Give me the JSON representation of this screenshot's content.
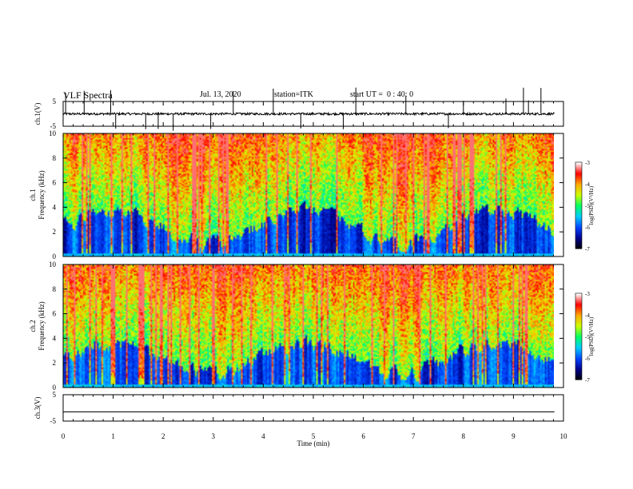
{
  "header": {
    "title": "VLF Spectra",
    "date": "Jul. 13, 2020",
    "station": "station=ITK",
    "start_ut": "start UT =  0 : 40: 0"
  },
  "chart_data": [
    {
      "type": "line",
      "panel": "ch1-waveform",
      "ylabel": "ch.1(V)",
      "ylim": [
        -5,
        5
      ],
      "yticks": [
        "5",
        "-5"
      ],
      "baseline": 0,
      "spike_times_min": [
        0.05,
        0.42,
        0.95,
        1.05,
        1.65,
        1.9,
        2.2,
        2.95,
        3.4,
        4.2,
        4.75,
        5.6,
        5.85,
        6.85,
        7.7,
        8.0,
        8.85,
        9.2,
        9.3,
        9.55
      ],
      "color": "#000000"
    },
    {
      "type": "heatmap",
      "panel": "ch1-spectrogram",
      "ylabel": "ch.1 Frequency (kHz)",
      "xlim": [
        0,
        9.8
      ],
      "ylim": [
        0,
        10
      ],
      "yticks": [
        "0",
        "2",
        "4",
        "6",
        "8",
        "10"
      ],
      "colorbar": {
        "label": "log(PSD)(V²/Hz)",
        "range": [
          -7,
          -3
        ],
        "ticks": [
          "-3",
          "-4",
          "-5",
          "-6",
          "-7"
        ],
        "colors": [
          "#000000",
          "#00008b",
          "#0044ff",
          "#00ccff",
          "#00ff66",
          "#ccff00",
          "#ffaa00",
          "#ff0000",
          "#ffffff"
        ]
      }
    },
    {
      "type": "heatmap",
      "panel": "ch2-spectrogram",
      "ylabel": "ch.2 Frequency (kHz)",
      "xlim": [
        0,
        9.8
      ],
      "ylim": [
        0,
        10
      ],
      "yticks": [
        "0",
        "2",
        "4",
        "6",
        "8",
        "10"
      ],
      "colorbar": {
        "label": "log(PSD)(V²/Hz)",
        "range": [
          -7,
          -3
        ],
        "ticks": [
          "-3",
          "-4",
          "-5",
          "-6",
          "-7"
        ],
        "colors": [
          "#000000",
          "#00008b",
          "#0044ff",
          "#00ccff",
          "#00ff66",
          "#ccff00",
          "#ffaa00",
          "#ff0000",
          "#ffffff"
        ]
      }
    },
    {
      "type": "line",
      "panel": "ch3-waveform",
      "ylabel": "ch.3(V)",
      "ylim": [
        -5,
        5
      ],
      "yticks": [
        "5",
        "-5"
      ],
      "baseline": -1.5,
      "color": "#000000"
    }
  ],
  "xaxis": {
    "label": "Time (min)",
    "ticks": [
      "0",
      "1",
      "2",
      "3",
      "4",
      "5",
      "6",
      "7",
      "8",
      "9",
      "10"
    ],
    "range": [
      0,
      10
    ]
  }
}
